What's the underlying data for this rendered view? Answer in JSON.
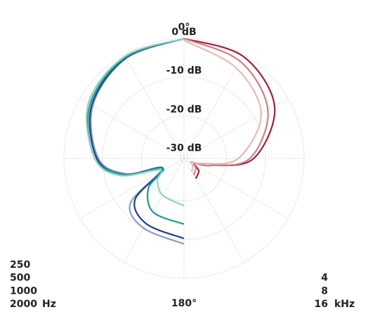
{
  "chart_data": {
    "type": "polar",
    "theta": [
      0,
      30,
      60,
      90,
      105,
      115,
      130,
      150,
      180
    ],
    "rlim": [
      -31,
      0
    ],
    "rticks": [
      {
        "value": 0,
        "label": "0 dB"
      },
      {
        "value": -10,
        "label": "-10 dB"
      },
      {
        "value": -20,
        "label": "-20 dB"
      },
      {
        "value": -30,
        "label": "-30 dB"
      }
    ],
    "theta_ticks": [
      {
        "value": 0,
        "label": "0°"
      },
      {
        "value": 180,
        "label": "180°"
      }
    ],
    "theta_grid": [
      0,
      30,
      60,
      90,
      120,
      150,
      180,
      210,
      240,
      270,
      300,
      330
    ],
    "grid": true,
    "left_unit": "Hz",
    "right_unit": "kHz",
    "series": [
      {
        "name": "250",
        "color": "#8b9bc8",
        "side": "left",
        "values": [
          0,
          -1.1,
          -3.8,
          -8.9,
          -15.6,
          -24.7,
          -12.9,
          -10.2,
          -8.9
        ]
      },
      {
        "name": "500",
        "color": "#1f3f8f",
        "side": "left",
        "values": [
          0,
          -1,
          -3.5,
          -8.5,
          -15,
          -25,
          -14.5,
          -11.5,
          -10.3
        ]
      },
      {
        "name": "1000",
        "color": "#1a9e8a",
        "side": "left",
        "values": [
          0,
          -0.8,
          -3,
          -8,
          -15,
          -25,
          -19,
          -15,
          -14
        ]
      },
      {
        "name": "2000",
        "color": "#8fd0bf",
        "side": "left",
        "values": [
          0,
          -0.5,
          -2.5,
          -8,
          -14,
          -24,
          -22,
          -20,
          -18.8
        ]
      },
      {
        "name": "4",
        "color": "#a01f35",
        "side": "right",
        "values": [
          0,
          -0.5,
          -4,
          -13,
          -24,
          -28,
          -26,
          -25,
          null
        ]
      },
      {
        "name": "8",
        "color": "#cf7f86",
        "side": "right",
        "values": [
          0,
          -2,
          -6,
          -14,
          -24,
          -28,
          -27,
          -26,
          null
        ]
      },
      {
        "name": "16",
        "color": "#e8b8b8",
        "side": "right",
        "values": [
          -0.5,
          -4,
          -8,
          -17,
          -26,
          -29,
          -28,
          -27,
          null
        ]
      }
    ]
  }
}
